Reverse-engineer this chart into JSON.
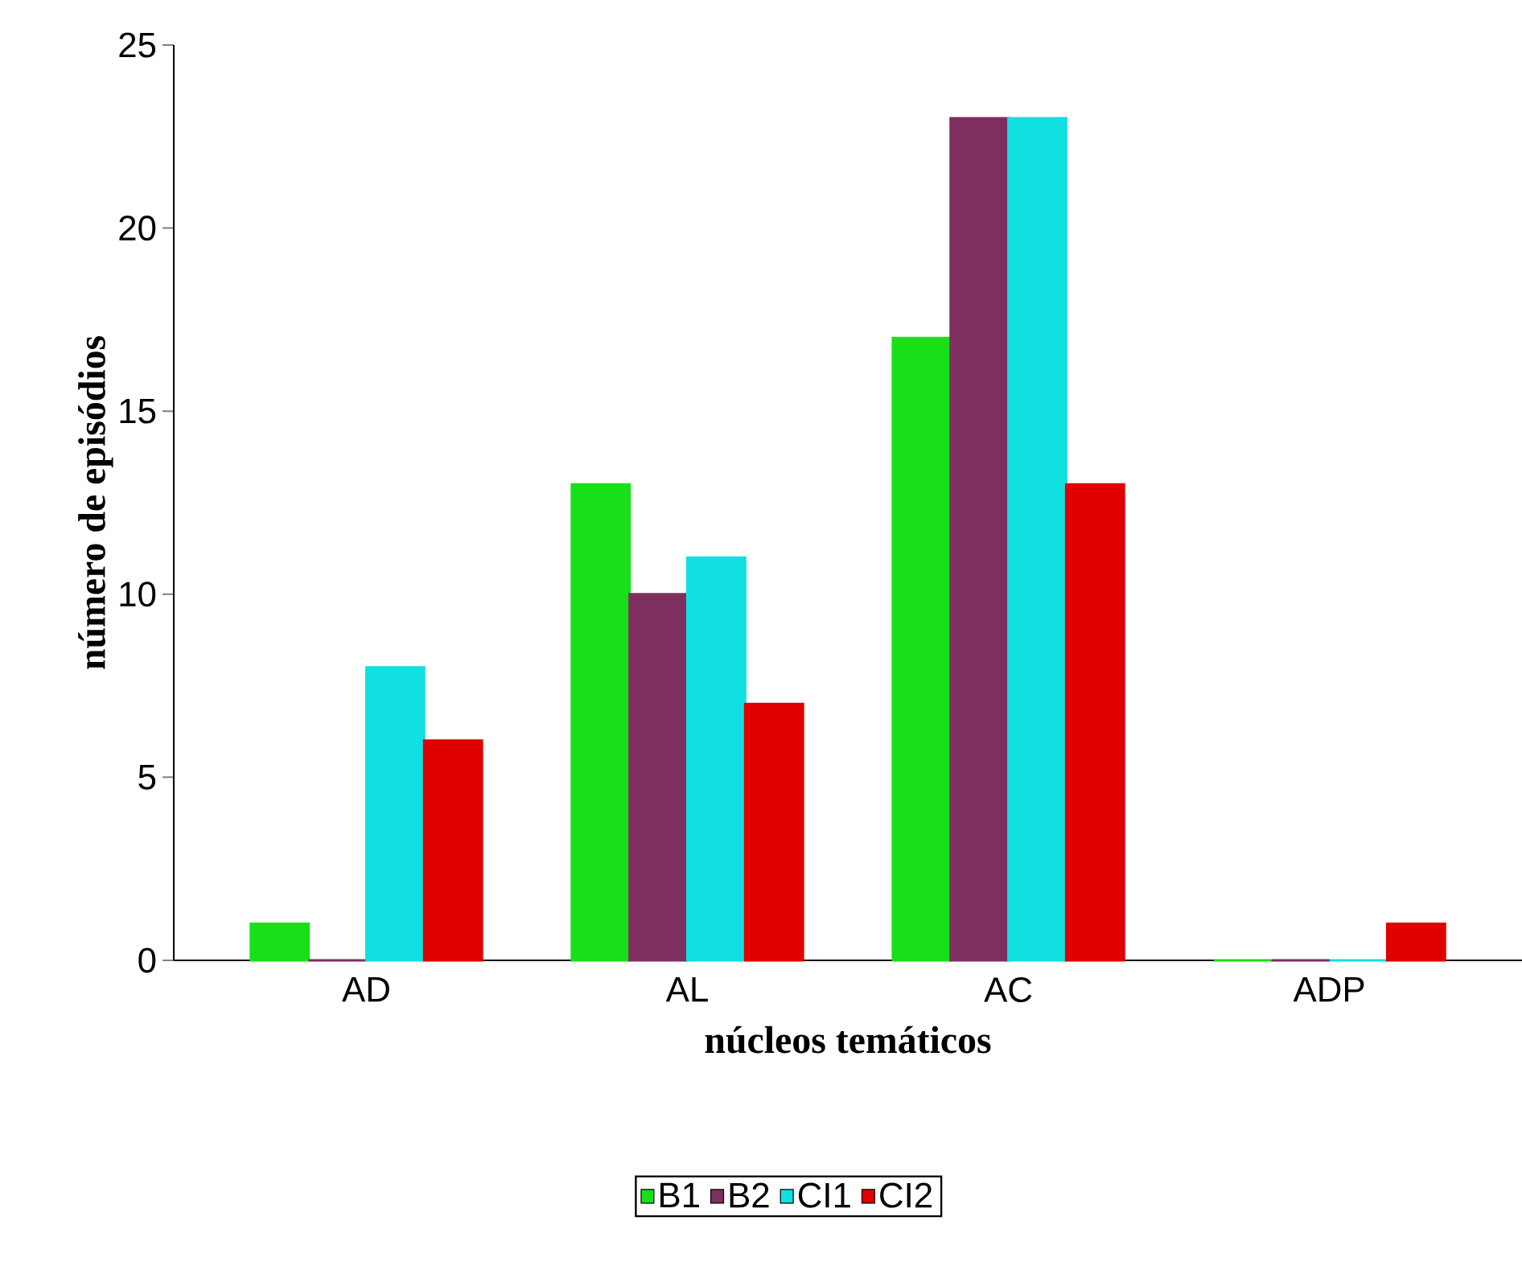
{
  "chart_data": {
    "type": "bar",
    "xlabel": "núcleos temáticos",
    "ylabel": "número de episódios",
    "categories": [
      "AD",
      "AL",
      "AC",
      "ADP"
    ],
    "series": [
      {
        "name": "B1",
        "color": "#18e018",
        "values": [
          1,
          13,
          17,
          0
        ]
      },
      {
        "name": "B2",
        "color": "#7f2f5f",
        "values": [
          0,
          10,
          23,
          0
        ]
      },
      {
        "name": "CI1",
        "color": "#10e0e0",
        "values": [
          8,
          11,
          23,
          0
        ]
      },
      {
        "name": "CI2",
        "color": "#e00000",
        "values": [
          6,
          7,
          13,
          1
        ]
      }
    ],
    "ylim": [
      0,
      25
    ],
    "yticks": [
      0,
      5,
      10,
      15,
      20,
      25
    ],
    "legend": "bottom",
    "grid": false
  }
}
